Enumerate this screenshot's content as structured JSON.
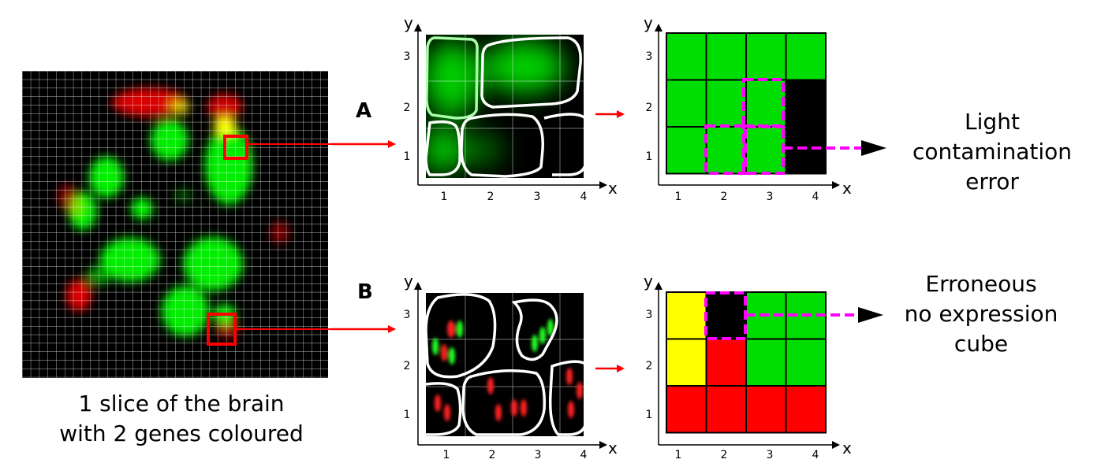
{
  "brain_slice": {
    "caption_line1": "1 slice of the brain",
    "caption_line2": "with 2 genes coloured"
  },
  "panel_a": {
    "letter": "A",
    "x_axis_label": "x",
    "y_axis_label": "y",
    "x_ticks": [
      "1",
      "2",
      "3",
      "4"
    ],
    "y_ticks": [
      "1",
      "2",
      "3"
    ],
    "result_grid": [
      [
        "#00dd00",
        "#00dd00",
        "#00dd00",
        "#00dd00"
      ],
      [
        "#00dd00",
        "#00dd00",
        "#00dd00",
        "#000000"
      ],
      [
        "#00dd00",
        "#00dd00",
        "#00dd00",
        "#000000"
      ]
    ],
    "error_label_line1": "Light",
    "error_label_line2": "contamination",
    "error_label_line3": "error"
  },
  "panel_b": {
    "letter": "B",
    "x_axis_label": "x",
    "y_axis_label": "y",
    "x_ticks": [
      "1",
      "2",
      "3",
      "4"
    ],
    "y_ticks": [
      "1",
      "2",
      "3"
    ],
    "result_grid": [
      [
        "#ffff00",
        "#000000",
        "#00dd00",
        "#00dd00"
      ],
      [
        "#ffff00",
        "#ff0000",
        "#00dd00",
        "#00dd00"
      ],
      [
        "#ff0000",
        "#ff0000",
        "#ff0000",
        "#ff0000"
      ]
    ],
    "error_label_line1": "Erroneous",
    "error_label_line2": "no expression",
    "error_label_line3": "cube"
  },
  "colors": {
    "gene_green": "#00ff00",
    "gene_red": "#ff0000",
    "overlap_yellow": "#ffff00",
    "highlight_magenta": "#ff00ff",
    "arrow_red": "#ff0000"
  }
}
